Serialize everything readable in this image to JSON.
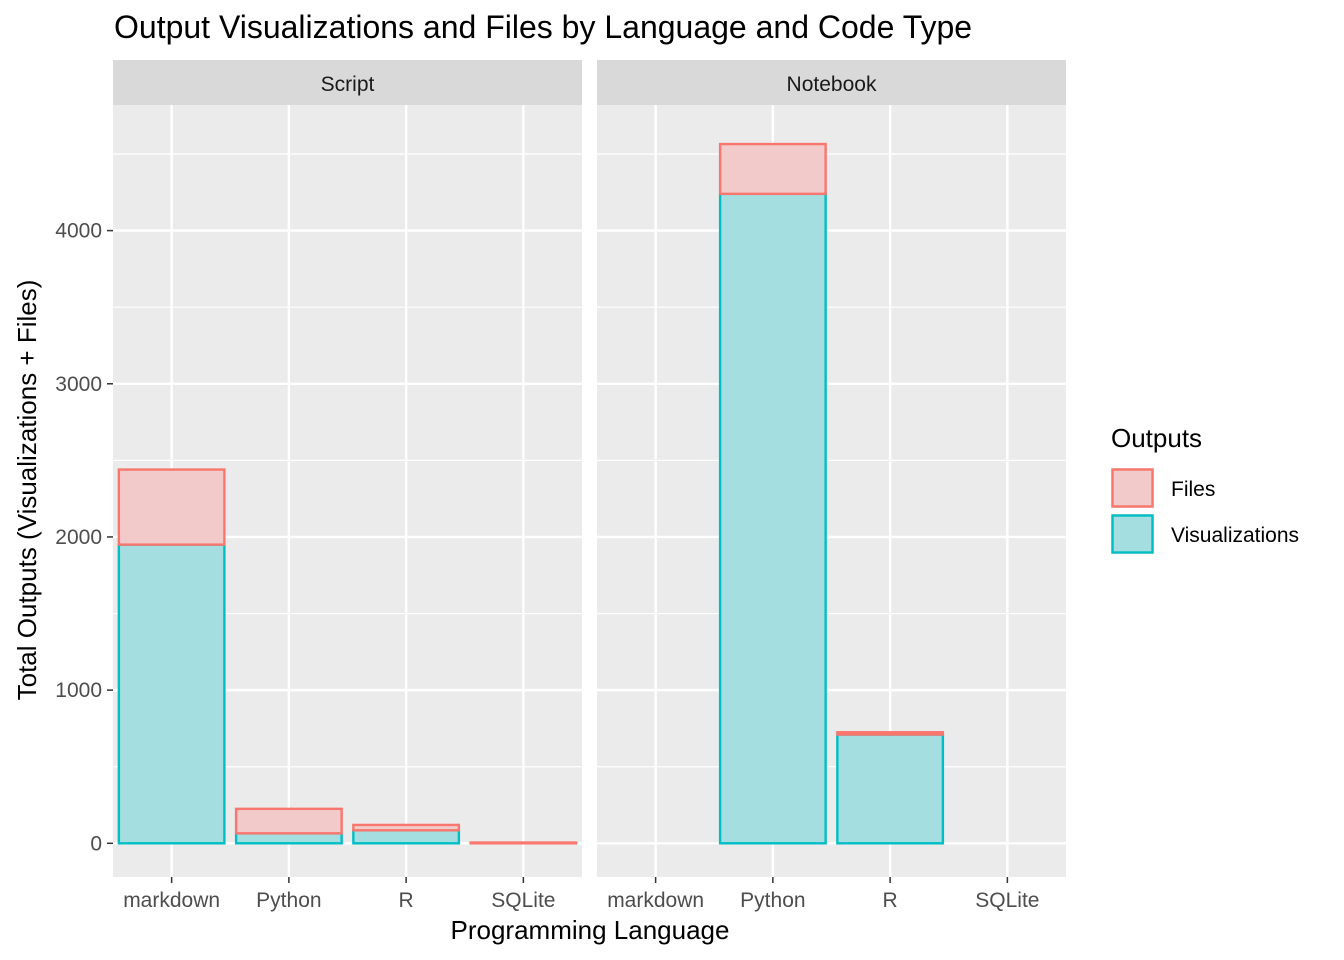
{
  "chart_data": {
    "type": "bar",
    "stacked": true,
    "title": "Output Visualizations and Files by Language and Code Type",
    "xlabel": "Programming Language",
    "ylabel": "Total Outputs (Visualizations + Files)",
    "ylim": [
      -220,
      4820
    ],
    "yticks": [
      0,
      1000,
      2000,
      3000,
      4000
    ],
    "categories": [
      "markdown",
      "Python",
      "R",
      "SQLite"
    ],
    "grid": true,
    "legend": {
      "title": "Outputs",
      "position": "right",
      "entries": [
        {
          "name": "Files",
          "color": "#F8766D"
        },
        {
          "name": "Visualizations",
          "color": "#00BFC4"
        }
      ]
    },
    "facets": [
      {
        "label": "Script",
        "series": [
          {
            "name": "Visualizations",
            "values": [
              1950,
              65,
              85,
              0
            ]
          },
          {
            "name": "Files",
            "values": [
              490,
              160,
              35,
              5
            ]
          }
        ]
      },
      {
        "label": "Notebook",
        "series": [
          {
            "name": "Visualizations",
            "values": [
              0,
              4240,
              710,
              0
            ]
          },
          {
            "name": "Files",
            "values": [
              0,
              325,
              15,
              0
            ]
          }
        ]
      }
    ]
  }
}
